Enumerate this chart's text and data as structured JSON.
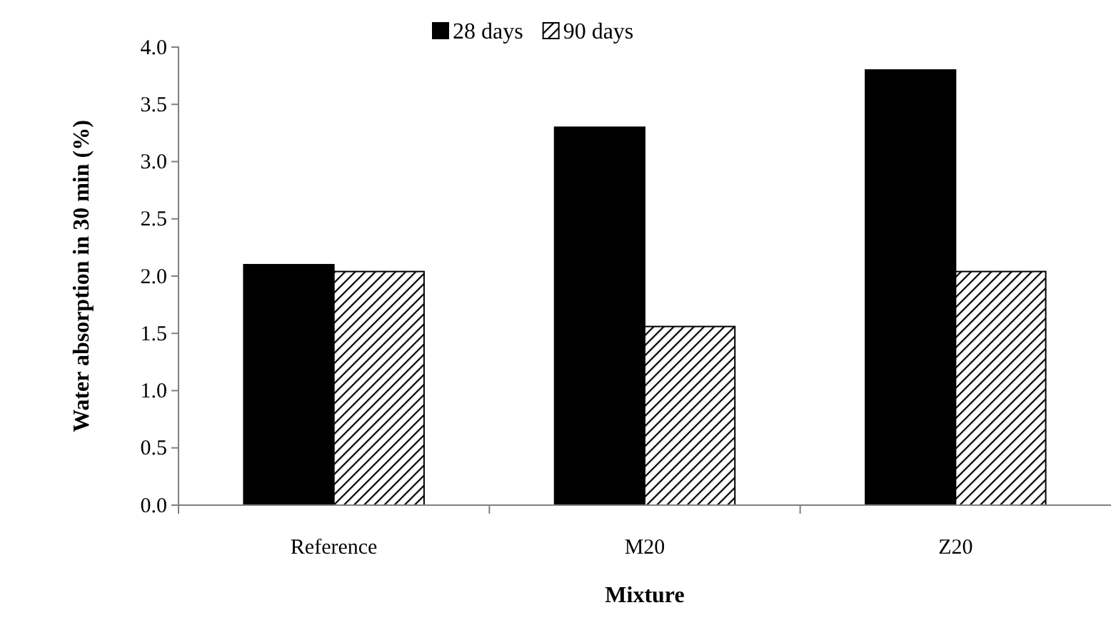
{
  "chart_data": {
    "type": "bar",
    "xlabel": "Mixture",
    "ylabel": "Water absorption in 30 min (%)",
    "categories": [
      "Reference",
      "M20",
      "Z20"
    ],
    "series": [
      {
        "name": "28 days",
        "color": "#000000",
        "values": [
          2.1,
          3.3,
          3.8
        ]
      },
      {
        "name": "90 days",
        "color": "#000000",
        "values": [
          2.04,
          1.56,
          2.04
        ]
      }
    ],
    "ylim": [
      0,
      4
    ],
    "yticks": [
      {
        "value": 0,
        "label": "0.0"
      },
      {
        "value": 0.5,
        "label": "0.5"
      },
      {
        "value": 1,
        "label": "1.0"
      },
      {
        "value": 1.5,
        "label": "1.5"
      },
      {
        "value": 2,
        "label": "2.0"
      },
      {
        "value": 2.5,
        "label": "2.5"
      },
      {
        "value": 3,
        "label": "3.0"
      },
      {
        "value": 3.5,
        "label": "3.5"
      },
      {
        "value": 4,
        "label": "4.0"
      }
    ],
    "grid": false,
    "legend": "top"
  }
}
